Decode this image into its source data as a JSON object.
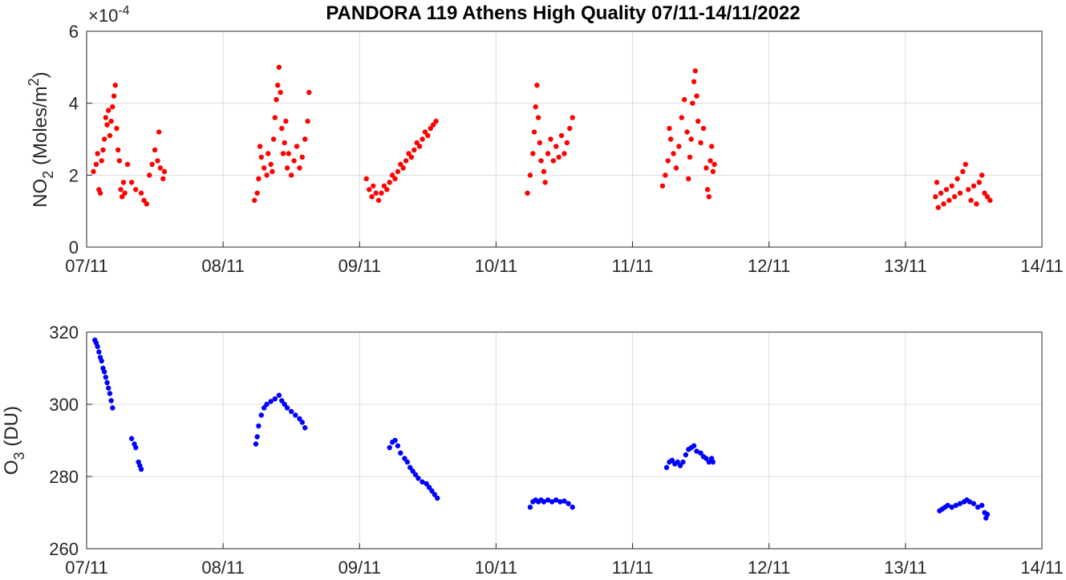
{
  "title": "PANDORA 119 Athens High Quality 07/11-14/11/2022",
  "chart_data": [
    {
      "type": "scatter",
      "ylabel_main": "NO",
      "ylabel_sub": "2",
      "ylabel_rest": " (Moles/m",
      "ylabel_sup": "2",
      "ylabel_end": ")",
      "exponent_label": "×10",
      "exponent_value": "-4",
      "xlim": [
        7.0,
        14.0
      ],
      "ylim": [
        0,
        6
      ],
      "yticks": [
        0,
        2,
        4,
        6
      ],
      "ytick_labels": [
        "0",
        "2",
        "4",
        "6"
      ],
      "xticks": [
        7,
        8,
        9,
        10,
        11,
        12,
        13,
        14
      ],
      "xtick_labels": [
        "07/11",
        "08/11",
        "09/11",
        "10/11",
        "11/11",
        "12/11",
        "13/11",
        "14/11"
      ],
      "grid": true,
      "color": "#ff0000",
      "points": [
        [
          7.05,
          2.1
        ],
        [
          7.07,
          2.3
        ],
        [
          7.08,
          2.6
        ],
        [
          7.09,
          1.6
        ],
        [
          7.1,
          1.5
        ],
        [
          7.11,
          2.4
        ],
        [
          7.12,
          2.7
        ],
        [
          7.13,
          3.0
        ],
        [
          7.14,
          3.6
        ],
        [
          7.15,
          3.4
        ],
        [
          7.16,
          3.8
        ],
        [
          7.17,
          3.1
        ],
        [
          7.18,
          3.5
        ],
        [
          7.19,
          3.9
        ],
        [
          7.2,
          4.2
        ],
        [
          7.21,
          4.5
        ],
        [
          7.22,
          3.3
        ],
        [
          7.23,
          2.7
        ],
        [
          7.24,
          2.4
        ],
        [
          7.25,
          1.6
        ],
        [
          7.26,
          1.4
        ],
        [
          7.27,
          1.8
        ],
        [
          7.28,
          1.5
        ],
        [
          7.3,
          2.3
        ],
        [
          7.33,
          1.8
        ],
        [
          7.36,
          1.6
        ],
        [
          7.4,
          1.5
        ],
        [
          7.42,
          1.3
        ],
        [
          7.44,
          1.2
        ],
        [
          7.46,
          2.0
        ],
        [
          7.48,
          2.3
        ],
        [
          7.5,
          2.7
        ],
        [
          7.52,
          2.4
        ],
        [
          7.53,
          3.2
        ],
        [
          7.54,
          2.2
        ],
        [
          7.56,
          1.9
        ],
        [
          7.57,
          2.1
        ],
        [
          8.23,
          1.3
        ],
        [
          8.25,
          1.5
        ],
        [
          8.26,
          1.9
        ],
        [
          8.27,
          2.8
        ],
        [
          8.28,
          2.5
        ],
        [
          8.3,
          2.2
        ],
        [
          8.32,
          2.0
        ],
        [
          8.33,
          2.6
        ],
        [
          8.35,
          2.3
        ],
        [
          8.36,
          2.1
        ],
        [
          8.37,
          3.0
        ],
        [
          8.38,
          3.6
        ],
        [
          8.39,
          4.1
        ],
        [
          8.4,
          4.5
        ],
        [
          8.41,
          5.0
        ],
        [
          8.42,
          4.3
        ],
        [
          8.43,
          3.3
        ],
        [
          8.44,
          2.6
        ],
        [
          8.45,
          2.9
        ],
        [
          8.46,
          3.5
        ],
        [
          8.47,
          2.2
        ],
        [
          8.48,
          2.6
        ],
        [
          8.5,
          2.0
        ],
        [
          8.52,
          2.4
        ],
        [
          8.54,
          2.8
        ],
        [
          8.56,
          2.2
        ],
        [
          8.58,
          2.5
        ],
        [
          8.6,
          3.0
        ],
        [
          8.62,
          3.5
        ],
        [
          8.63,
          4.3
        ],
        [
          9.05,
          1.9
        ],
        [
          9.07,
          1.6
        ],
        [
          9.09,
          1.4
        ],
        [
          9.1,
          1.7
        ],
        [
          9.12,
          1.5
        ],
        [
          9.14,
          1.3
        ],
        [
          9.16,
          1.5
        ],
        [
          9.18,
          1.7
        ],
        [
          9.2,
          1.6
        ],
        [
          9.22,
          1.8
        ],
        [
          9.24,
          2.0
        ],
        [
          9.26,
          1.9
        ],
        [
          9.28,
          2.1
        ],
        [
          9.3,
          2.3
        ],
        [
          9.32,
          2.2
        ],
        [
          9.34,
          2.4
        ],
        [
          9.36,
          2.6
        ],
        [
          9.38,
          2.5
        ],
        [
          9.4,
          2.7
        ],
        [
          9.42,
          2.9
        ],
        [
          9.44,
          2.8
        ],
        [
          9.46,
          3.0
        ],
        [
          9.48,
          3.2
        ],
        [
          9.5,
          3.1
        ],
        [
          9.52,
          3.3
        ],
        [
          9.54,
          3.4
        ],
        [
          9.56,
          3.5
        ],
        [
          10.23,
          1.5
        ],
        [
          10.25,
          2.0
        ],
        [
          10.27,
          2.6
        ],
        [
          10.28,
          3.2
        ],
        [
          10.29,
          3.9
        ],
        [
          10.3,
          4.5
        ],
        [
          10.31,
          3.6
        ],
        [
          10.32,
          2.9
        ],
        [
          10.33,
          2.4
        ],
        [
          10.35,
          2.1
        ],
        [
          10.36,
          1.8
        ],
        [
          10.38,
          2.6
        ],
        [
          10.4,
          3.0
        ],
        [
          10.42,
          2.4
        ],
        [
          10.44,
          2.8
        ],
        [
          10.46,
          2.5
        ],
        [
          10.48,
          3.1
        ],
        [
          10.5,
          2.6
        ],
        [
          10.52,
          2.9
        ],
        [
          10.54,
          3.3
        ],
        [
          10.56,
          3.6
        ],
        [
          11.22,
          1.7
        ],
        [
          11.24,
          2.0
        ],
        [
          11.26,
          2.4
        ],
        [
          11.27,
          3.3
        ],
        [
          11.28,
          3.0
        ],
        [
          11.3,
          2.6
        ],
        [
          11.32,
          2.2
        ],
        [
          11.34,
          2.8
        ],
        [
          11.36,
          3.6
        ],
        [
          11.38,
          4.1
        ],
        [
          11.4,
          3.2
        ],
        [
          11.41,
          1.9
        ],
        [
          11.42,
          2.5
        ],
        [
          11.43,
          3.0
        ],
        [
          11.44,
          4.0
        ],
        [
          11.45,
          4.6
        ],
        [
          11.46,
          4.9
        ],
        [
          11.47,
          4.2
        ],
        [
          11.48,
          3.5
        ],
        [
          11.5,
          2.9
        ],
        [
          11.52,
          3.3
        ],
        [
          11.54,
          2.2
        ],
        [
          11.55,
          1.6
        ],
        [
          11.56,
          1.4
        ],
        [
          11.57,
          2.4
        ],
        [
          11.58,
          2.8
        ],
        [
          11.59,
          2.1
        ],
        [
          11.6,
          2.3
        ],
        [
          13.22,
          1.4
        ],
        [
          13.23,
          1.8
        ],
        [
          13.24,
          1.1
        ],
        [
          13.26,
          1.5
        ],
        [
          13.28,
          1.2
        ],
        [
          13.3,
          1.6
        ],
        [
          13.32,
          1.3
        ],
        [
          13.34,
          1.7
        ],
        [
          13.36,
          1.4
        ],
        [
          13.38,
          1.9
        ],
        [
          13.4,
          1.5
        ],
        [
          13.42,
          2.1
        ],
        [
          13.44,
          2.3
        ],
        [
          13.46,
          1.6
        ],
        [
          13.48,
          1.3
        ],
        [
          13.5,
          1.7
        ],
        [
          13.52,
          1.2
        ],
        [
          13.54,
          1.8
        ],
        [
          13.56,
          2.0
        ],
        [
          13.58,
          1.5
        ],
        [
          13.6,
          1.4
        ],
        [
          13.62,
          1.3
        ]
      ]
    },
    {
      "type": "scatter",
      "ylabel_main": "O",
      "ylabel_sub": "3",
      "ylabel_rest": " (DU)",
      "xlim": [
        7.0,
        14.0
      ],
      "ylim": [
        260,
        320
      ],
      "yticks": [
        260,
        280,
        300,
        320
      ],
      "ytick_labels": [
        "260",
        "280",
        "300",
        "320"
      ],
      "xticks": [
        7,
        8,
        9,
        10,
        11,
        12,
        13,
        14
      ],
      "xtick_labels": [
        "07/11",
        "08/11",
        "09/11",
        "10/11",
        "11/11",
        "12/11",
        "13/11",
        "14/11"
      ],
      "grid": true,
      "color": "#0000ff",
      "points": [
        [
          7.06,
          317.8
        ],
        [
          7.07,
          317.0
        ],
        [
          7.08,
          316.0
        ],
        [
          7.09,
          314.5
        ],
        [
          7.1,
          313.0
        ],
        [
          7.11,
          312.0
        ],
        [
          7.12,
          310.0
        ],
        [
          7.13,
          309.0
        ],
        [
          7.14,
          307.5
        ],
        [
          7.15,
          306.0
        ],
        [
          7.16,
          304.5
        ],
        [
          7.17,
          303.0
        ],
        [
          7.18,
          301.0
        ],
        [
          7.19,
          299.0
        ],
        [
          7.33,
          290.5
        ],
        [
          7.35,
          289.0
        ],
        [
          7.36,
          288.0
        ],
        [
          7.38,
          284.0
        ],
        [
          7.39,
          283.0
        ],
        [
          7.4,
          282.0
        ],
        [
          8.24,
          289.0
        ],
        [
          8.25,
          291.0
        ],
        [
          8.26,
          294.0
        ],
        [
          8.28,
          297.0
        ],
        [
          8.3,
          299.0
        ],
        [
          8.32,
          300.0
        ],
        [
          8.35,
          300.8
        ],
        [
          8.38,
          301.5
        ],
        [
          8.41,
          302.5
        ],
        [
          8.43,
          301.0
        ],
        [
          8.45,
          300.0
        ],
        [
          8.47,
          299.0
        ],
        [
          8.5,
          298.0
        ],
        [
          8.53,
          297.0
        ],
        [
          8.56,
          296.0
        ],
        [
          8.58,
          295.0
        ],
        [
          8.6,
          293.5
        ],
        [
          9.22,
          288.0
        ],
        [
          9.24,
          289.5
        ],
        [
          9.26,
          290.0
        ],
        [
          9.28,
          288.5
        ],
        [
          9.3,
          286.5
        ],
        [
          9.33,
          285.0
        ],
        [
          9.35,
          284.0
        ],
        [
          9.37,
          282.5
        ],
        [
          9.39,
          281.5
        ],
        [
          9.41,
          280.5
        ],
        [
          9.43,
          279.5
        ],
        [
          9.46,
          278.5
        ],
        [
          9.49,
          278.0
        ],
        [
          9.51,
          277.0
        ],
        [
          9.53,
          276.0
        ],
        [
          9.55,
          275.0
        ],
        [
          9.57,
          274.0
        ],
        [
          10.25,
          271.5
        ],
        [
          10.27,
          273.0
        ],
        [
          10.29,
          273.5
        ],
        [
          10.31,
          273.0
        ],
        [
          10.33,
          273.5
        ],
        [
          10.35,
          273.0
        ],
        [
          10.38,
          273.5
        ],
        [
          10.41,
          273.0
        ],
        [
          10.44,
          273.5
        ],
        [
          10.47,
          273.0
        ],
        [
          10.5,
          273.2
        ],
        [
          10.53,
          272.5
        ],
        [
          10.56,
          271.5
        ],
        [
          11.25,
          282.5
        ],
        [
          11.27,
          284.0
        ],
        [
          11.29,
          284.5
        ],
        [
          11.31,
          283.5
        ],
        [
          11.33,
          284.0
        ],
        [
          11.35,
          283.0
        ],
        [
          11.37,
          284.0
        ],
        [
          11.39,
          286.0
        ],
        [
          11.41,
          287.5
        ],
        [
          11.43,
          288.0
        ],
        [
          11.45,
          288.5
        ],
        [
          11.47,
          287.0
        ],
        [
          11.5,
          286.5
        ],
        [
          11.52,
          285.5
        ],
        [
          11.54,
          285.0
        ],
        [
          11.56,
          284.0
        ],
        [
          11.58,
          285.0
        ],
        [
          11.59,
          284.0
        ],
        [
          13.25,
          270.5
        ],
        [
          13.27,
          271.0
        ],
        [
          13.29,
          271.5
        ],
        [
          13.31,
          272.0
        ],
        [
          13.34,
          271.5
        ],
        [
          13.37,
          272.0
        ],
        [
          13.4,
          272.5
        ],
        [
          13.43,
          273.0
        ],
        [
          13.45,
          273.5
        ],
        [
          13.47,
          273.0
        ],
        [
          13.5,
          272.5
        ],
        [
          13.53,
          271.5
        ],
        [
          13.56,
          272.0
        ],
        [
          13.58,
          270.0
        ],
        [
          13.59,
          268.5
        ],
        [
          13.6,
          269.5
        ]
      ]
    }
  ]
}
